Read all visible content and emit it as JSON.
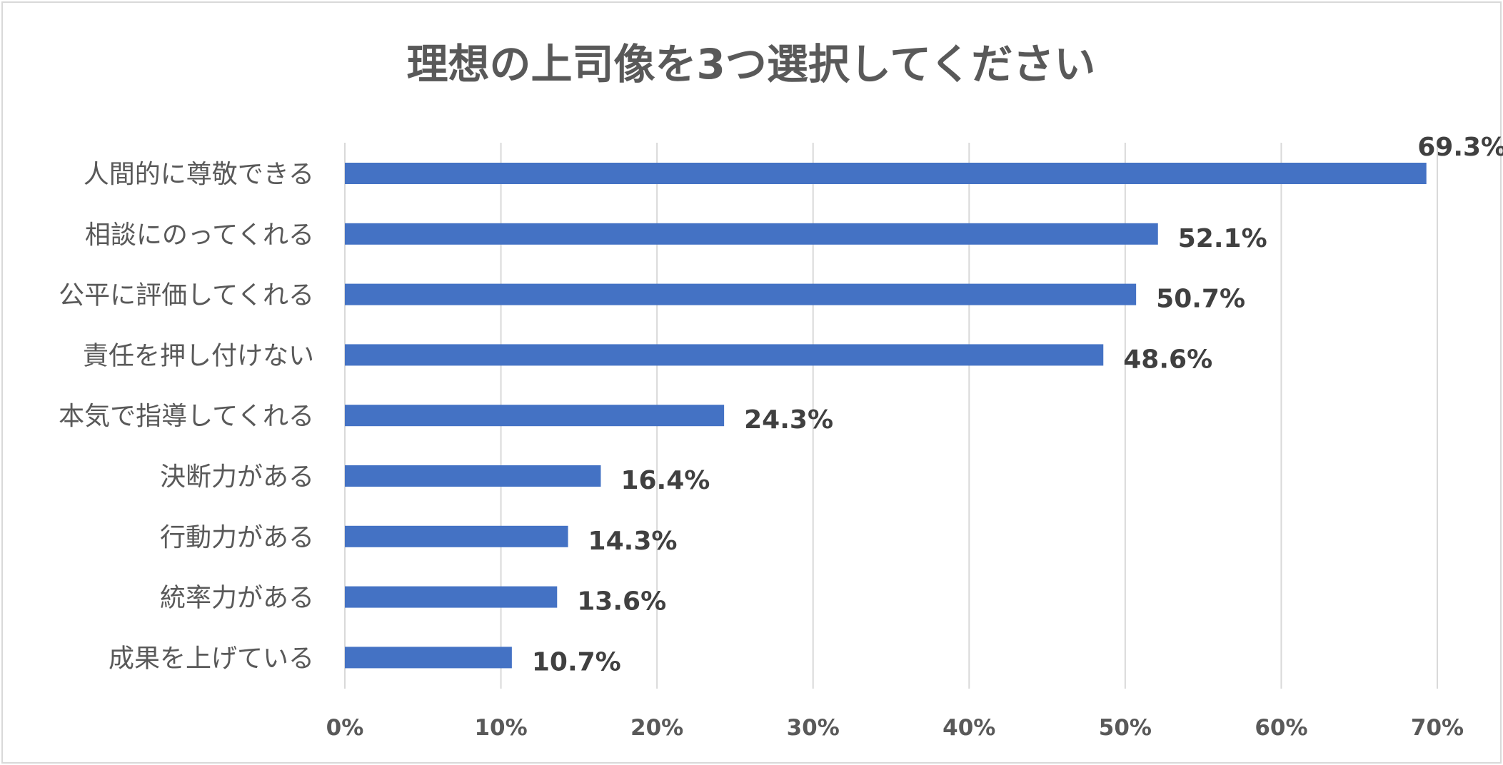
{
  "chart_data": {
    "type": "bar",
    "orientation": "horizontal",
    "title": "理想の上司像を3つ選択してください",
    "categories": [
      "人間的に尊敬できる",
      "相談にのってくれる",
      "公平に評価してくれる",
      "責任を押し付けない",
      "本気で指導してくれる",
      "決断力がある",
      "行動力がある",
      "統率力がある",
      "成果を上げている"
    ],
    "values": [
      69.3,
      52.1,
      50.7,
      48.6,
      24.3,
      16.4,
      14.3,
      13.6,
      10.7
    ],
    "data_labels": [
      "69.3%",
      "52.1%",
      "50.7%",
      "48.6%",
      "24.3%",
      "16.4%",
      "14.3%",
      "13.6%",
      "10.7%"
    ],
    "x_ticks": [
      "0%",
      "10%",
      "20%",
      "30%",
      "40%",
      "50%",
      "60%",
      "70%"
    ],
    "xlim": [
      0,
      70
    ],
    "grid": true,
    "legend": "none",
    "colors": {
      "bar": "#4472c4",
      "grid": "#d9d9d9",
      "text": "#595959",
      "data_label": "#404040"
    }
  }
}
